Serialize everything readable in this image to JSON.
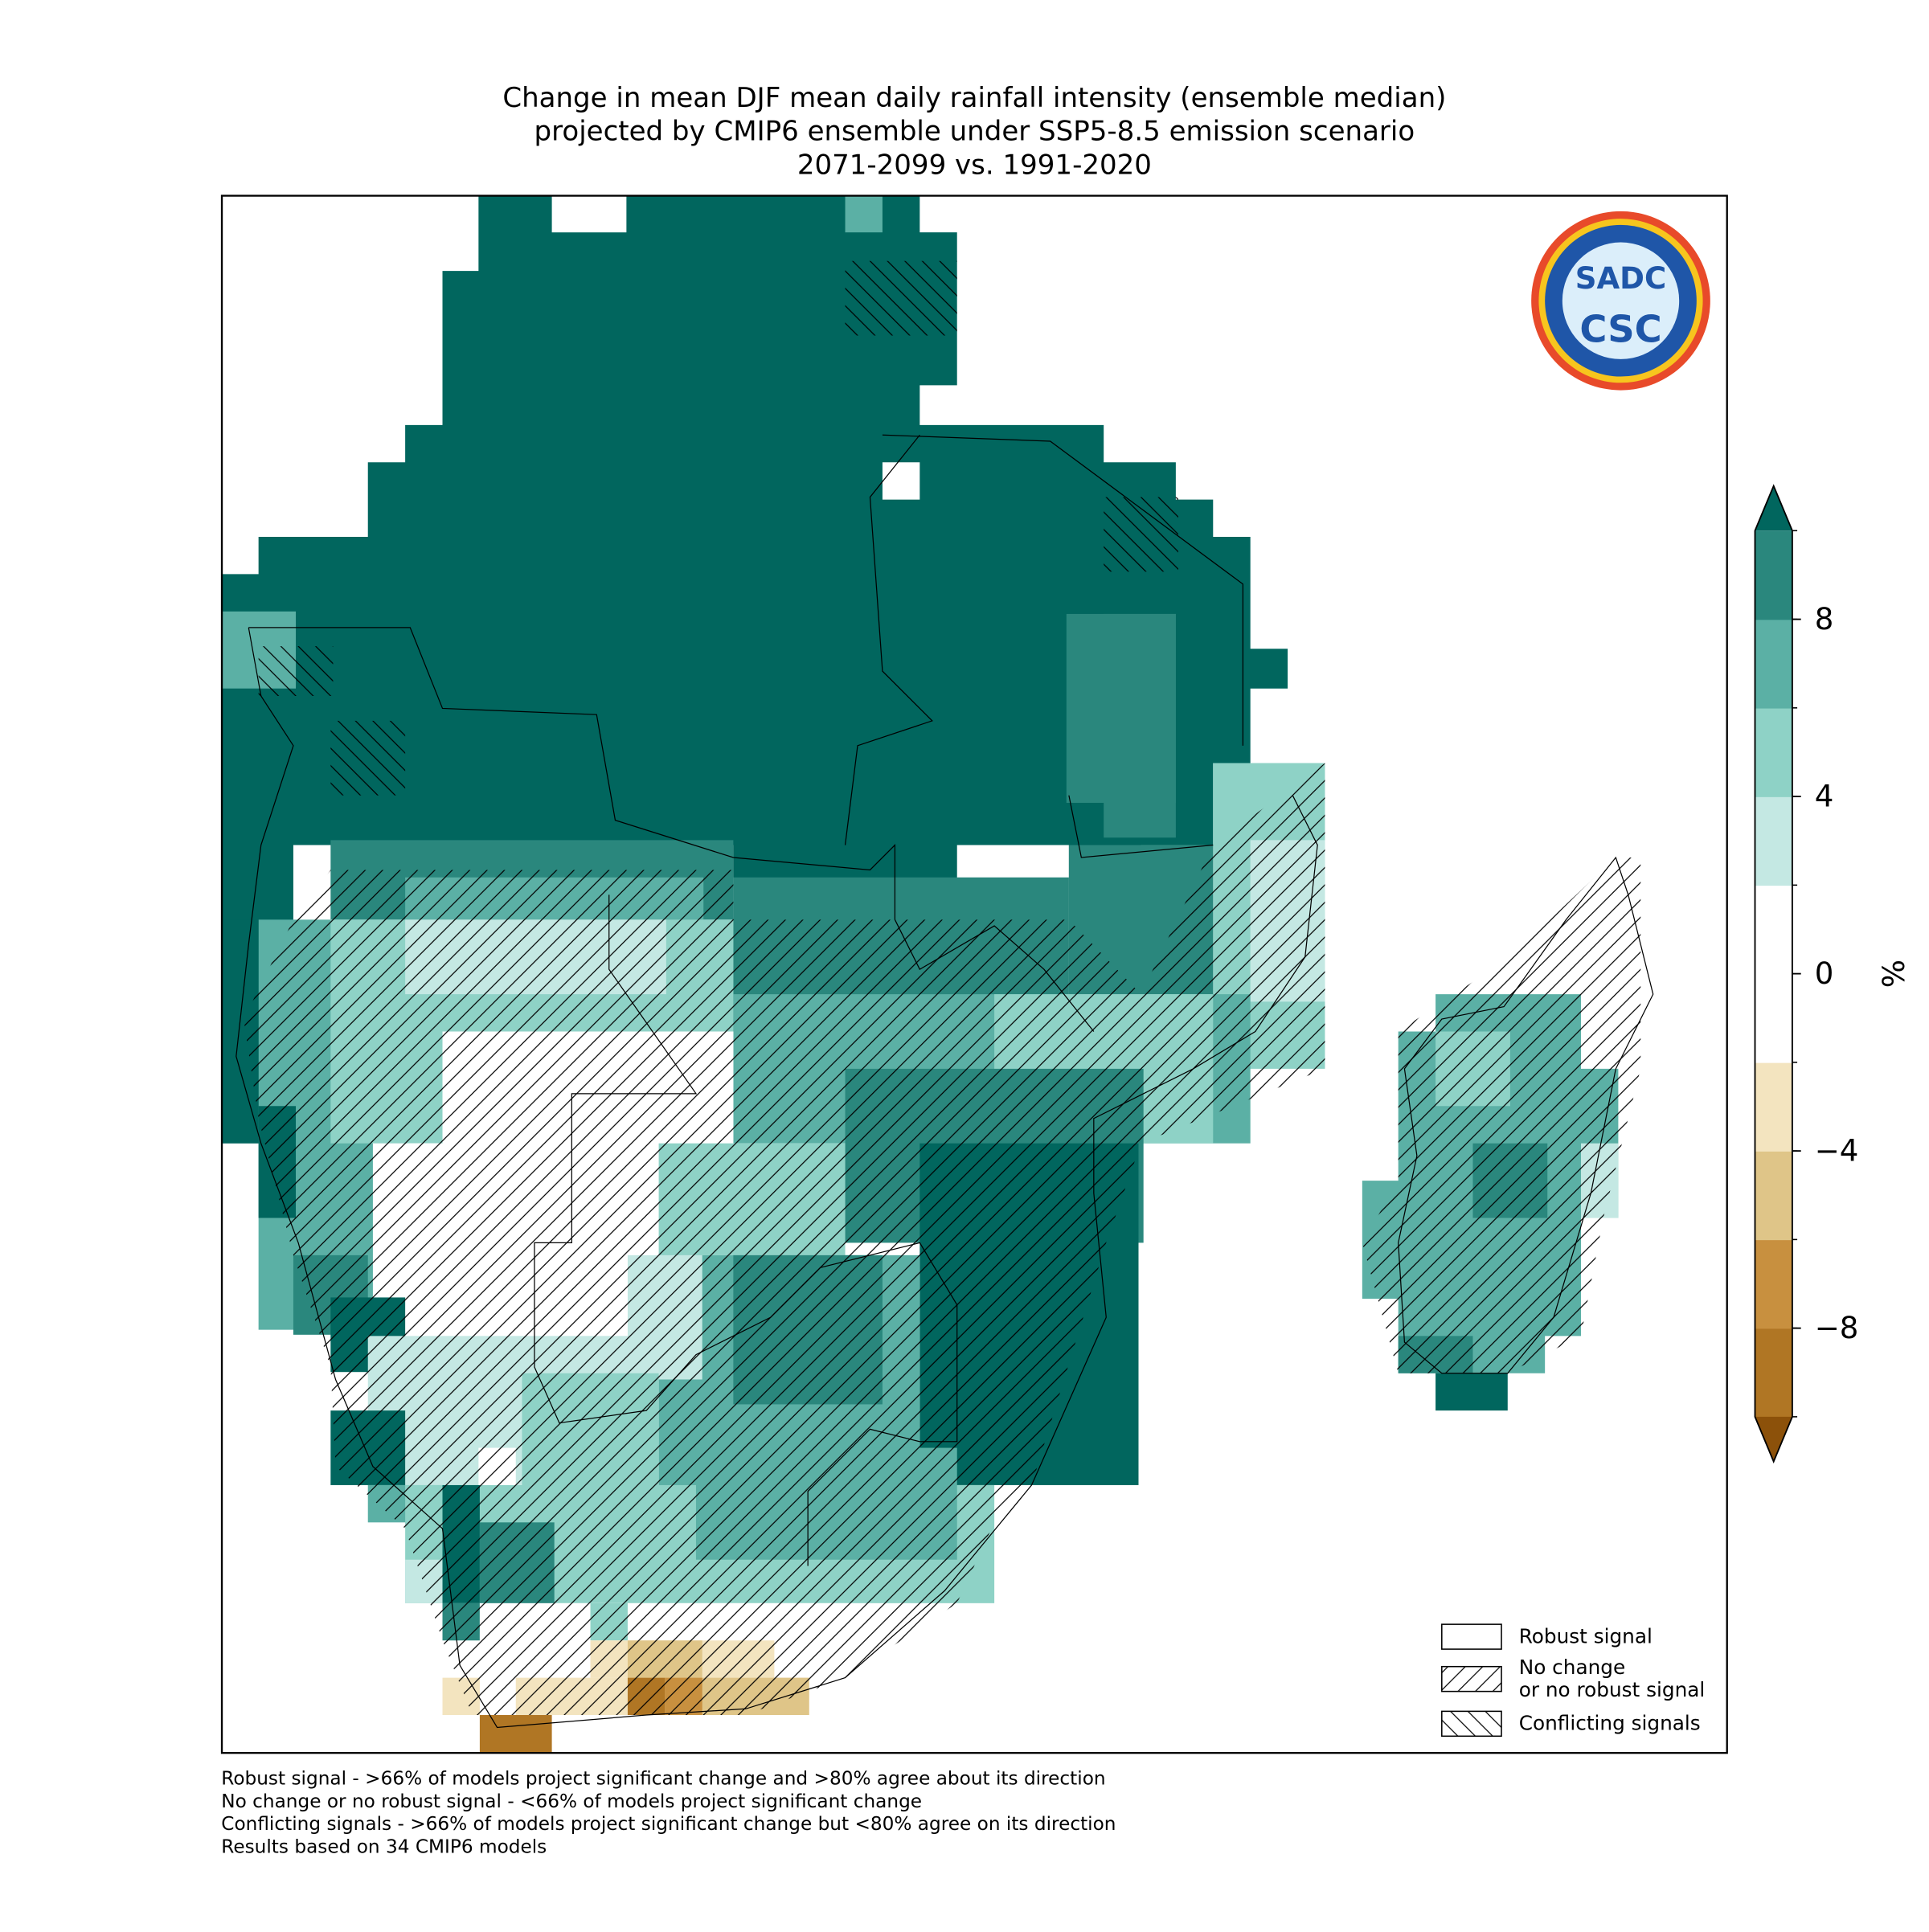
{
  "title_lines": [
    "Change in mean DJF mean daily rainfall intensity (ensemble median)",
    "projected by CMIP6 ensemble under SSP5-8.5 emission scenario",
    "2071-2099 vs. 1991-2020"
  ],
  "logo": {
    "top": "SADC",
    "bottom": "CSC"
  },
  "colorbar": {
    "label": "%",
    "levels": [
      -10,
      -8,
      -6,
      -4,
      -2,
      2,
      4,
      6,
      8,
      10
    ],
    "colors": [
      "#b07624",
      "#c8903f",
      "#dfc588",
      "#f3e4bf",
      "#ffffff",
      "#c4e8e3",
      "#8ed2c6",
      "#5bb0a5",
      "#2a877d"
    ],
    "extend_low_color": "#8c510a",
    "extend_high_color": "#01665e",
    "ticks": [
      {
        "value": -8,
        "label": "−8"
      },
      {
        "value": -4,
        "label": "−4"
      },
      0,
      4,
      8
    ]
  },
  "legend": [
    {
      "label": [
        "Robust signal"
      ],
      "hatch": "none"
    },
    {
      "label": [
        "No change",
        "or no robust signal"
      ],
      "hatch": "forward"
    },
    {
      "label": [
        "Conflicting signals"
      ],
      "hatch": "back"
    }
  ],
  "footnotes": [
    "Robust signal - >66% of models project significant change and >80% agree about its direction",
    "No change or no robust signal - <66% of models project significant change",
    "Conflicting signals - >66% of models project significant change but <80% agree on its direction",
    "Results based on 34 CMIP6 models"
  ]
}
